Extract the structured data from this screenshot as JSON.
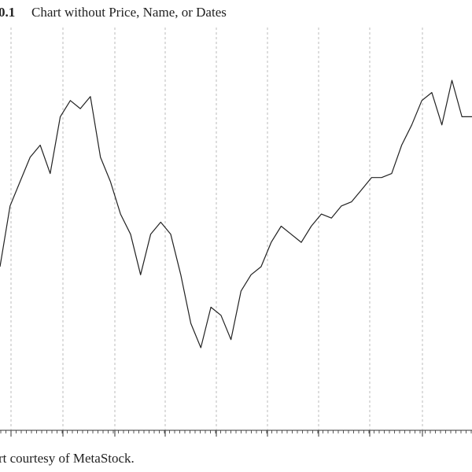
{
  "chart_data": {
    "type": "line",
    "figure_label": "0.1",
    "title": "Chart without Price, Name, or Dates",
    "source": "rt courtesy of MetaStock.",
    "color": "#222222",
    "values": [
      40,
      55,
      61,
      67,
      70,
      63,
      77,
      81,
      79,
      82,
      67,
      61,
      53,
      48,
      38,
      48,
      51,
      48,
      38,
      26,
      20,
      30,
      28,
      22,
      34,
      38,
      40,
      46,
      50,
      48,
      46,
      50,
      53,
      52,
      55,
      56,
      59,
      62,
      62,
      63,
      70,
      75,
      81,
      83,
      75,
      86,
      77,
      77
    ],
    "ylim": [
      0,
      100
    ]
  }
}
